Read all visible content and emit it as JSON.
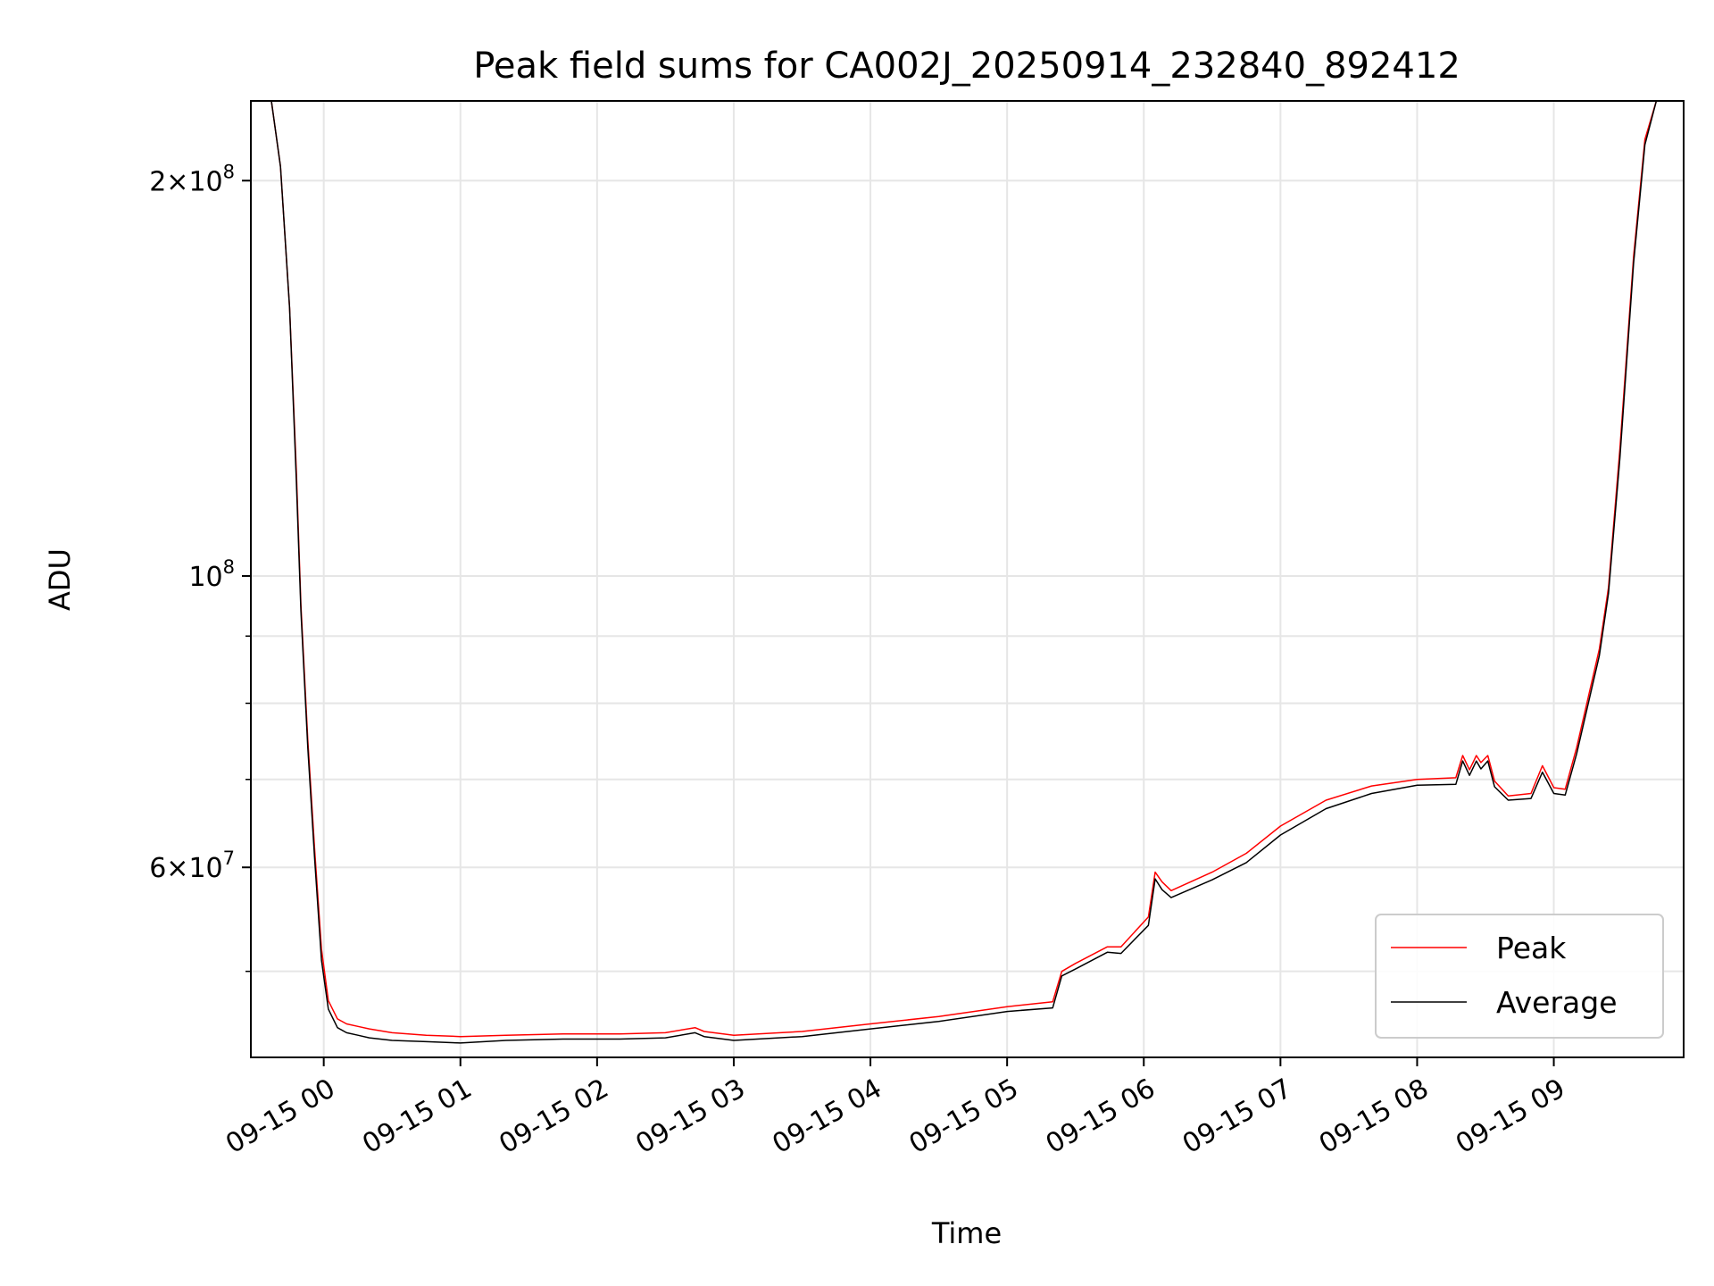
{
  "chart_data": {
    "type": "line",
    "title": "Peak field sums for CA002J_20250914_232840_892412",
    "xlabel": "Time",
    "ylabel": "ADU",
    "x_scale": "time",
    "y_scale": "log",
    "xlim": [
      "09-14 23:28",
      "09-15 09:57"
    ],
    "ylim": [
      43000000,
      230000000
    ],
    "grid": true,
    "legend_position": "lower-right",
    "x_ticks": [
      "09-15 00",
      "09-15 01",
      "09-15 02",
      "09-15 03",
      "09-15 04",
      "09-15 05",
      "09-15 06",
      "09-15 07",
      "09-15 08",
      "09-15 09"
    ],
    "y_tick_labels": [
      {
        "value": 200000000,
        "mantissa": "2",
        "exponent": "8"
      },
      {
        "value": 100000000,
        "mantissa": "",
        "exponent": "8"
      },
      {
        "value": 60000000,
        "mantissa": "6",
        "exponent": "7"
      }
    ],
    "y_minor_ticks": [
      50000000,
      70000000,
      80000000,
      90000000
    ],
    "series": [
      {
        "name": "Peak",
        "color": "#ff0000",
        "x": [
          "09-14 23:28",
          "09-14 23:37",
          "09-14 23:41",
          "09-14 23:45",
          "09-14 23:48",
          "09-14 23:50",
          "09-14 23:53",
          "09-14 23:56",
          "09-14 23:59",
          "09-15 00:02",
          "09-15 00:06",
          "09-15 00:10",
          "09-15 00:15",
          "09-15 00:20",
          "09-15 00:30",
          "09-15 00:45",
          "09-15 01:00",
          "09-15 01:20",
          "09-15 01:45",
          "09-15 02:10",
          "09-15 02:30",
          "09-15 02:43",
          "09-15 02:47",
          "09-15 03:00",
          "09-15 03:30",
          "09-15 04:00",
          "09-15 04:30",
          "09-15 05:00",
          "09-15 05:20",
          "09-15 05:24",
          "09-15 05:30",
          "09-15 05:44",
          "09-15 05:50",
          "09-15 06:02",
          "09-15 06:05",
          "09-15 06:08",
          "09-15 06:12",
          "09-15 06:30",
          "09-15 06:45",
          "09-15 07:00",
          "09-15 07:20",
          "09-15 07:40",
          "09-15 08:00",
          "09-15 08:17",
          "09-15 08:20",
          "09-15 08:23",
          "09-15 08:26",
          "09-15 08:28",
          "09-15 08:31",
          "09-15 08:34",
          "09-15 08:40",
          "09-15 08:50",
          "09-15 08:55",
          "09-15 09:00",
          "09-15 09:05",
          "09-15 09:10",
          "09-15 09:20",
          "09-15 09:24",
          "09-15 09:29",
          "09-15 09:35",
          "09-15 09:40",
          "09-15 09:45",
          "09-15 09:57"
        ],
        "y": [
          230000000,
          230000000,
          205000000,
          160000000,
          120000000,
          95000000,
          75000000,
          62000000,
          52000000,
          47500000,
          46000000,
          45600000,
          45400000,
          45200000,
          44900000,
          44700000,
          44600000,
          44700000,
          44800000,
          44800000,
          44900000,
          45300000,
          45000000,
          44700000,
          45000000,
          45600000,
          46200000,
          47000000,
          47400000,
          50000000,
          50700000,
          52200000,
          52200000,
          55000000,
          59500000,
          58500000,
          57600000,
          59500000,
          61500000,
          64500000,
          67500000,
          69200000,
          70000000,
          70200000,
          73000000,
          71200000,
          73000000,
          72100000,
          73000000,
          69800000,
          68000000,
          68300000,
          71700000,
          69000000,
          68800000,
          74000000,
          88000000,
          98000000,
          125000000,
          175000000,
          215000000,
          230000000,
          230000000
        ]
      },
      {
        "name": "Average",
        "color": "#000000",
        "x": [
          "09-14 23:28",
          "09-14 23:37",
          "09-14 23:41",
          "09-14 23:45",
          "09-14 23:48",
          "09-14 23:50",
          "09-14 23:53",
          "09-14 23:56",
          "09-14 23:59",
          "09-15 00:02",
          "09-15 00:06",
          "09-15 00:10",
          "09-15 00:15",
          "09-15 00:20",
          "09-15 00:30",
          "09-15 00:45",
          "09-15 01:00",
          "09-15 01:20",
          "09-15 01:45",
          "09-15 02:10",
          "09-15 02:30",
          "09-15 02:43",
          "09-15 02:47",
          "09-15 03:00",
          "09-15 03:30",
          "09-15 04:00",
          "09-15 04:30",
          "09-15 05:00",
          "09-15 05:20",
          "09-15 05:24",
          "09-15 05:30",
          "09-15 05:44",
          "09-15 05:50",
          "09-15 06:02",
          "09-15 06:05",
          "09-15 06:08",
          "09-15 06:12",
          "09-15 06:30",
          "09-15 06:45",
          "09-15 07:00",
          "09-15 07:20",
          "09-15 07:40",
          "09-15 08:00",
          "09-15 08:17",
          "09-15 08:20",
          "09-15 08:23",
          "09-15 08:26",
          "09-15 08:28",
          "09-15 08:31",
          "09-15 08:34",
          "09-15 08:40",
          "09-15 08:50",
          "09-15 08:55",
          "09-15 09:00",
          "09-15 09:05",
          "09-15 09:10",
          "09-15 09:20",
          "09-15 09:24",
          "09-15 09:29",
          "09-15 09:35",
          "09-15 09:40",
          "09-15 09:45",
          "09-15 09:57"
        ],
        "y": [
          230000000,
          230000000,
          205000000,
          160000000,
          118000000,
          94000000,
          74000000,
          61000000,
          51000000,
          46800000,
          45300000,
          44900000,
          44700000,
          44500000,
          44300000,
          44200000,
          44100000,
          44300000,
          44400000,
          44400000,
          44500000,
          44900000,
          44600000,
          44300000,
          44600000,
          45200000,
          45800000,
          46600000,
          46900000,
          49600000,
          50200000,
          51700000,
          51600000,
          54200000,
          58800000,
          57700000,
          56900000,
          58700000,
          60500000,
          63500000,
          66500000,
          68300000,
          69300000,
          69400000,
          72300000,
          70500000,
          72300000,
          71300000,
          72300000,
          69100000,
          67500000,
          67700000,
          70900000,
          68300000,
          68100000,
          73200000,
          87000000,
          97000000,
          123000000,
          173000000,
          213000000,
          230000000,
          230000000
        ]
      }
    ]
  }
}
